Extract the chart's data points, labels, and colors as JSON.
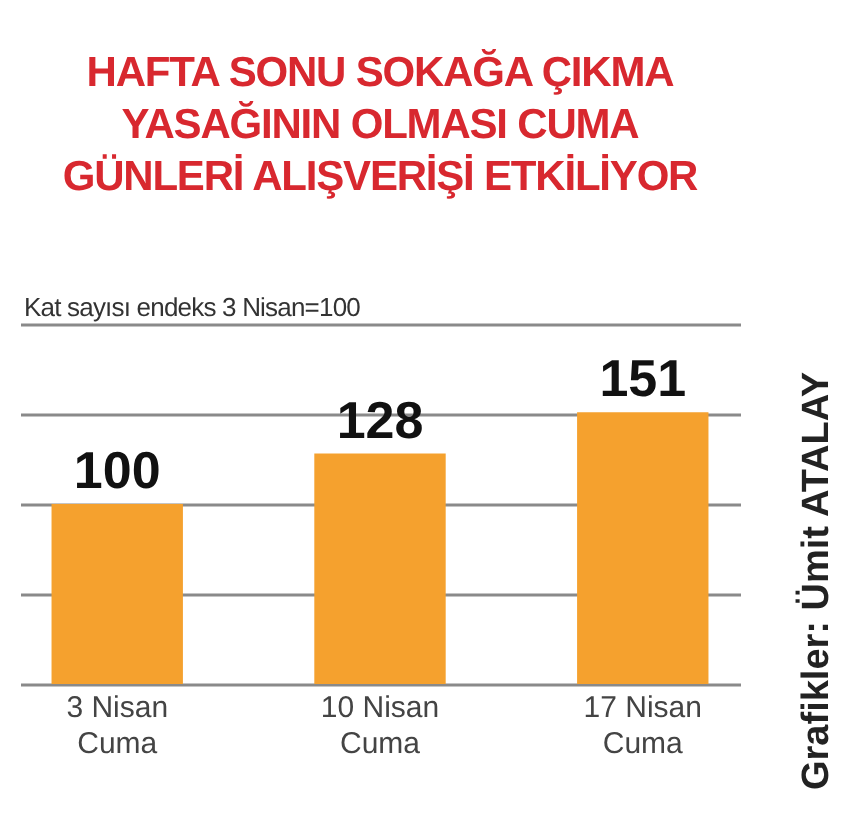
{
  "chart_data": {
    "type": "bar",
    "title": "HAFTA SONU SOKAĞA ÇIKMA YASAĞININ OLMASI CUMA GÜNLERİ ALIŞVERİŞİ ETKİLİYOR",
    "subtitle": "Kat sayısı endeks 3 Nisan=100",
    "categories": [
      "3 Nisan\nCuma",
      "10 Nisan\nCuma",
      "17 Nisan\nCuma"
    ],
    "values": [
      100,
      128,
      151
    ],
    "color": "#f5a12e",
    "ylim": [
      0,
      200
    ],
    "yticks": [
      {
        "value": 0,
        "label": null
      },
      {
        "value": 50,
        "label": null
      },
      {
        "value": 100,
        "label": null
      },
      {
        "value": 150,
        "label": null
      },
      {
        "value": 200,
        "label": null
      }
    ],
    "grid": "y",
    "tick_labels": "x",
    "data_labels": true,
    "annotations": [
      "Grafikler: Ümit ATALAY"
    ]
  }
}
